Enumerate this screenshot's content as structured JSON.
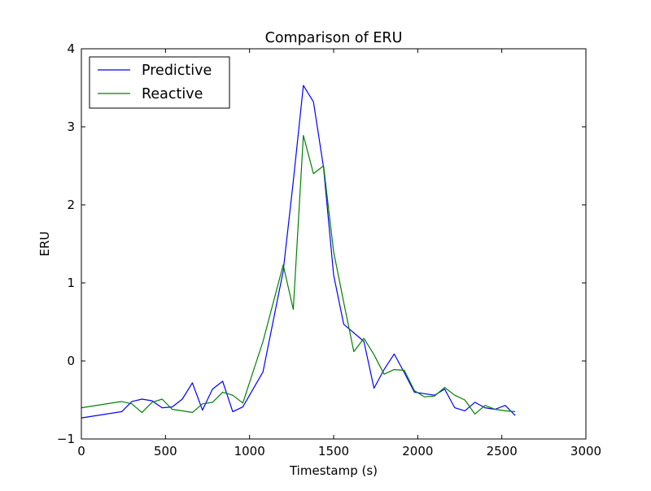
{
  "chart_data": {
    "type": "line",
    "title": "Comparison of ERU",
    "xlabel": "Timestamp (s)",
    "ylabel": "ERU",
    "xlim": [
      0,
      3000
    ],
    "ylim": [
      -1,
      4
    ],
    "xticks": [
      0,
      500,
      1000,
      1500,
      2000,
      2500,
      3000
    ],
    "xtick_labels": [
      "0",
      "500",
      "1000",
      "1500",
      "2000",
      "2500",
      "3000"
    ],
    "yticks": [
      -1,
      0,
      1,
      2,
      3,
      4
    ],
    "ytick_labels": [
      "−1",
      "0",
      "1",
      "2",
      "3",
      "4"
    ],
    "grid": false,
    "legend_position": "top-left",
    "series": [
      {
        "name": "Predictive",
        "color": "#0000ff",
        "x": [
          0,
          240,
          300,
          360,
          420,
          480,
          540,
          600,
          660,
          720,
          780,
          840,
          900,
          960,
          1080,
          1200,
          1260,
          1320,
          1380,
          1440,
          1500,
          1560,
          1680,
          1740,
          1800,
          1860,
          1920,
          1980,
          2040,
          2100,
          2160,
          2220,
          2280,
          2340,
          2400,
          2460,
          2520,
          2580
        ],
        "y": [
          -0.73,
          -0.65,
          -0.52,
          -0.49,
          -0.51,
          -0.6,
          -0.59,
          -0.49,
          -0.28,
          -0.63,
          -0.36,
          -0.26,
          -0.65,
          -0.59,
          -0.14,
          1.15,
          2.3,
          3.53,
          3.32,
          2.48,
          1.1,
          0.47,
          0.25,
          -0.35,
          -0.11,
          0.09,
          -0.15,
          -0.4,
          -0.42,
          -0.44,
          -0.36,
          -0.6,
          -0.64,
          -0.53,
          -0.6,
          -0.62,
          -0.57,
          -0.7
        ]
      },
      {
        "name": "Reactive",
        "color": "#008000",
        "x": [
          0,
          240,
          300,
          360,
          420,
          480,
          540,
          600,
          660,
          720,
          780,
          840,
          900,
          960,
          1080,
          1200,
          1260,
          1320,
          1380,
          1440,
          1500,
          1560,
          1620,
          1680,
          1740,
          1800,
          1860,
          1920,
          1980,
          2040,
          2100,
          2160,
          2220,
          2280,
          2340,
          2400,
          2460,
          2520,
          2580
        ],
        "y": [
          -0.6,
          -0.52,
          -0.55,
          -0.66,
          -0.53,
          -0.49,
          -0.62,
          -0.64,
          -0.66,
          -0.55,
          -0.53,
          -0.4,
          -0.44,
          -0.54,
          0.25,
          1.23,
          0.66,
          2.89,
          2.4,
          2.5,
          1.4,
          0.75,
          0.12,
          0.29,
          0.08,
          -0.17,
          -0.11,
          -0.12,
          -0.38,
          -0.46,
          -0.45,
          -0.34,
          -0.44,
          -0.5,
          -0.68,
          -0.57,
          -0.62,
          -0.64,
          -0.65
        ]
      }
    ]
  }
}
